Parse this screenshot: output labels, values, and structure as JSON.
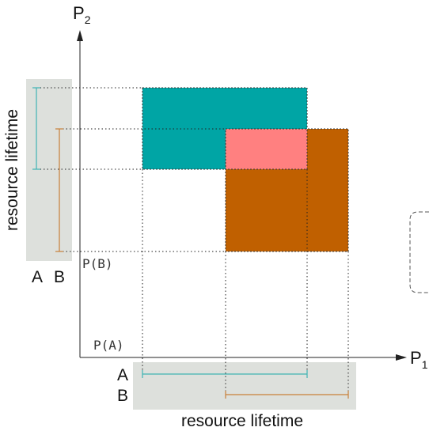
{
  "axes": {
    "p1_label": "P",
    "p1_subscript": "1",
    "p2_label": "P",
    "p2_subscript": "2"
  },
  "markers": {
    "p_of_a": "P(A)",
    "p_of_b": "P(B)"
  },
  "lifetime_panels": {
    "horizontal": {
      "label": "resource lifetime",
      "row_a": "A",
      "row_b": "B"
    },
    "vertical": {
      "label": "resource lifetime",
      "col_a": "A",
      "col_b": "B"
    }
  },
  "colors": {
    "resource_a": "#00a5a5",
    "resource_b": "#c06000",
    "overlap": "#ff8080",
    "panel_bg": "#dde0dc",
    "line_a": "#3fb3b3",
    "line_b": "#c8803a"
  }
}
